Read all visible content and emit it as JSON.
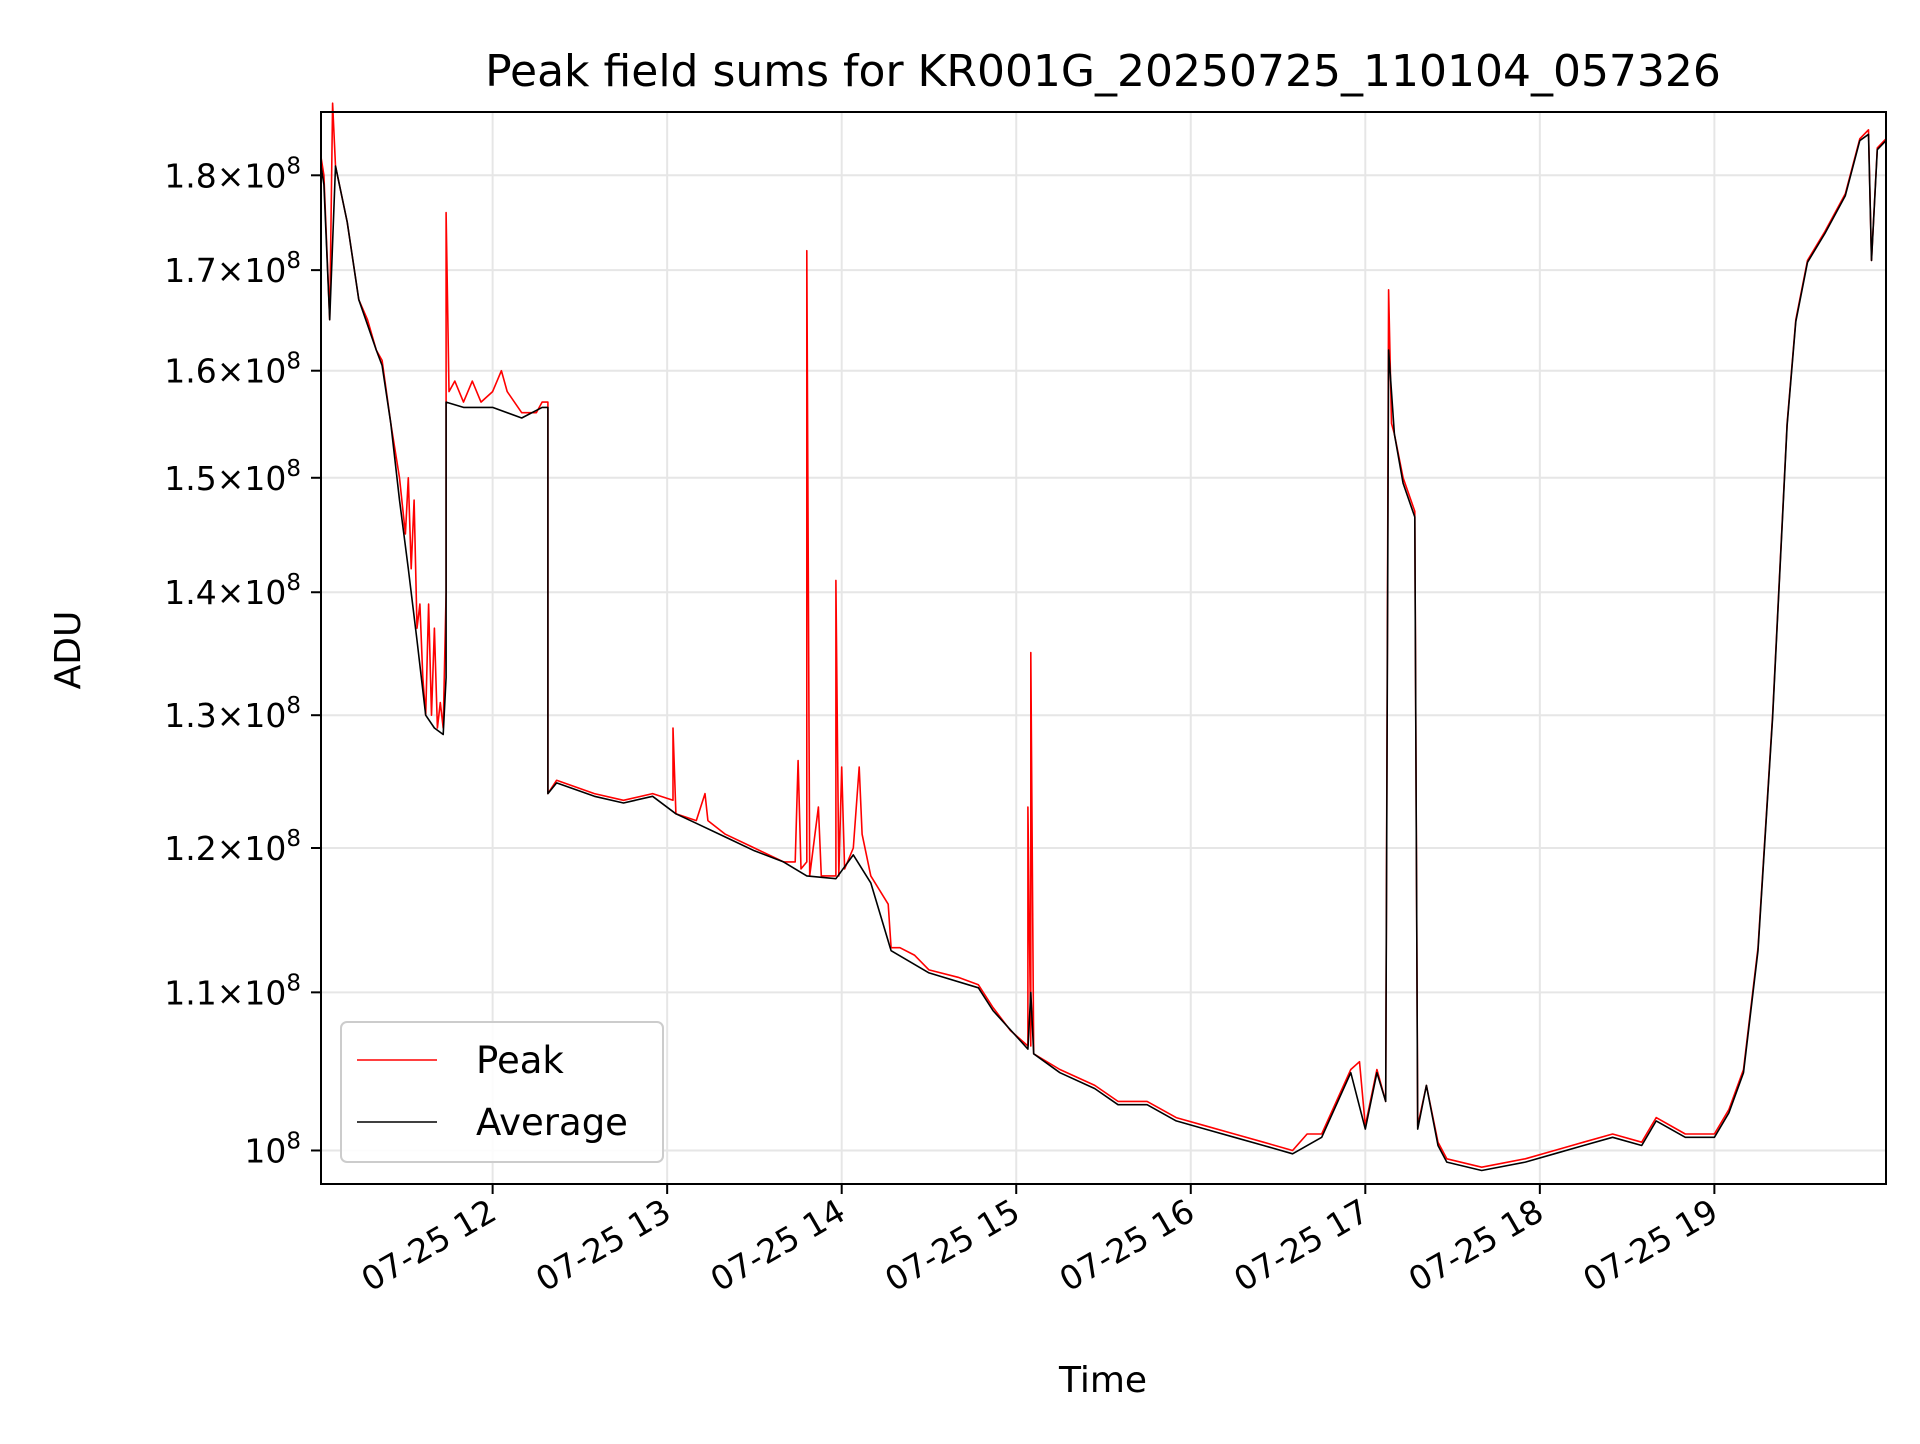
{
  "chart_data": {
    "type": "line",
    "title": "Peak field sums for KR001G_20250725_110104_057326",
    "xlabel": "Time",
    "ylabel": "ADU",
    "y_scale": "log",
    "grid": true,
    "legend_position": "lower-left",
    "xlim": [
      "2025-07-25 11:01",
      "2025-07-25 19:59"
    ],
    "ylim": [
      98000000,
      187000000
    ],
    "x_ticks": [
      {
        "value": "2025-07-25 12:00",
        "label": "07-25 12"
      },
      {
        "value": "2025-07-25 13:00",
        "label": "07-25 13"
      },
      {
        "value": "2025-07-25 14:00",
        "label": "07-25 14"
      },
      {
        "value": "2025-07-25 15:00",
        "label": "07-25 15"
      },
      {
        "value": "2025-07-25 16:00",
        "label": "07-25 16"
      },
      {
        "value": "2025-07-25 17:00",
        "label": "07-25 17"
      },
      {
        "value": "2025-07-25 18:00",
        "label": "07-25 18"
      },
      {
        "value": "2025-07-25 19:00",
        "label": "07-25 19"
      }
    ],
    "y_ticks": [
      {
        "value": 100000000,
        "mant": "",
        "base": "10",
        "exp": "8"
      },
      {
        "value": 110000000,
        "mant": "1.1",
        "base": "10",
        "exp": "8"
      },
      {
        "value": 120000000,
        "mant": "1.2",
        "base": "10",
        "exp": "8"
      },
      {
        "value": 130000000,
        "mant": "1.3",
        "base": "10",
        "exp": "8"
      },
      {
        "value": 140000000,
        "mant": "1.4",
        "base": "10",
        "exp": "8"
      },
      {
        "value": 150000000,
        "mant": "1.5",
        "base": "10",
        "exp": "8"
      },
      {
        "value": 160000000,
        "mant": "1.6",
        "base": "10",
        "exp": "8"
      },
      {
        "value": 170000000,
        "mant": "1.7",
        "base": "10",
        "exp": "8"
      },
      {
        "value": 180000000,
        "mant": "1.8",
        "base": "10",
        "exp": "8"
      }
    ],
    "series": [
      {
        "name": "Peak",
        "color": "#ff0000",
        "points": [
          [
            "2025-07-25 11:01",
            182000000
          ],
          [
            "2025-07-25 11:02",
            180000000
          ],
          [
            "2025-07-25 11:04",
            165000000
          ],
          [
            "2025-07-25 11:05",
            188000000
          ],
          [
            "2025-07-25 11:06",
            181000000
          ],
          [
            "2025-07-25 11:10",
            175000000
          ],
          [
            "2025-07-25 11:14",
            167000000
          ],
          [
            "2025-07-25 11:17",
            165000000
          ],
          [
            "2025-07-25 11:20",
            162000000
          ],
          [
            "2025-07-25 11:22",
            161000000
          ],
          [
            "2025-07-25 11:25",
            155000000
          ],
          [
            "2025-07-25 11:28",
            150000000
          ],
          [
            "2025-07-25 11:30",
            145000000
          ],
          [
            "2025-07-25 11:31",
            150000000
          ],
          [
            "2025-07-25 11:32",
            142000000
          ],
          [
            "2025-07-25 11:33",
            148000000
          ],
          [
            "2025-07-25 11:34",
            137000000
          ],
          [
            "2025-07-25 11:35",
            139000000
          ],
          [
            "2025-07-25 11:36",
            133000000
          ],
          [
            "2025-07-25 11:37",
            130000000
          ],
          [
            "2025-07-25 11:38",
            139000000
          ],
          [
            "2025-07-25 11:39",
            130000000
          ],
          [
            "2025-07-25 11:40",
            137000000
          ],
          [
            "2025-07-25 11:41",
            129000000
          ],
          [
            "2025-07-25 11:42",
            131000000
          ],
          [
            "2025-07-25 11:43",
            129000000
          ],
          [
            "2025-07-25 11:44",
            140000000
          ],
          [
            "2025-07-25 11:44",
            176000000
          ],
          [
            "2025-07-25 11:45",
            158000000
          ],
          [
            "2025-07-25 11:47",
            159000000
          ],
          [
            "2025-07-25 11:50",
            157000000
          ],
          [
            "2025-07-25 11:53",
            159000000
          ],
          [
            "2025-07-25 11:56",
            157000000
          ],
          [
            "2025-07-25 12:00",
            158000000
          ],
          [
            "2025-07-25 12:03",
            160000000
          ],
          [
            "2025-07-25 12:05",
            158000000
          ],
          [
            "2025-07-25 12:10",
            156000000
          ],
          [
            "2025-07-25 12:15",
            156000000
          ],
          [
            "2025-07-25 12:17",
            157000000
          ],
          [
            "2025-07-25 12:19",
            157000000
          ],
          [
            "2025-07-25 12:19",
            124000000
          ],
          [
            "2025-07-25 12:22",
            125000000
          ],
          [
            "2025-07-25 12:35",
            124000000
          ],
          [
            "2025-07-25 12:45",
            123500000
          ],
          [
            "2025-07-25 12:55",
            124000000
          ],
          [
            "2025-07-25 13:02",
            123500000
          ],
          [
            "2025-07-25 13:02",
            129000000
          ],
          [
            "2025-07-25 13:03",
            122500000
          ],
          [
            "2025-07-25 13:10",
            122000000
          ],
          [
            "2025-07-25 13:13",
            124000000
          ],
          [
            "2025-07-25 13:14",
            122000000
          ],
          [
            "2025-07-25 13:20",
            121000000
          ],
          [
            "2025-07-25 13:30",
            120000000
          ],
          [
            "2025-07-25 13:40",
            119000000
          ],
          [
            "2025-07-25 13:44",
            119000000
          ],
          [
            "2025-07-25 13:45",
            126500000
          ],
          [
            "2025-07-25 13:46",
            118500000
          ],
          [
            "2025-07-25 13:48",
            119000000
          ],
          [
            "2025-07-25 13:48",
            172000000
          ],
          [
            "2025-07-25 13:49",
            118000000
          ],
          [
            "2025-07-25 13:52",
            123000000
          ],
          [
            "2025-07-25 13:53",
            118000000
          ],
          [
            "2025-07-25 13:58",
            118000000
          ],
          [
            "2025-07-25 13:58",
            141000000
          ],
          [
            "2025-07-25 13:59",
            118000000
          ],
          [
            "2025-07-25 14:00",
            126000000
          ],
          [
            "2025-07-25 14:01",
            118500000
          ],
          [
            "2025-07-25 14:04",
            120000000
          ],
          [
            "2025-07-25 14:06",
            126000000
          ],
          [
            "2025-07-25 14:07",
            121000000
          ],
          [
            "2025-07-25 14:10",
            118000000
          ],
          [
            "2025-07-25 14:16",
            116000000
          ],
          [
            "2025-07-25 14:17",
            113000000
          ],
          [
            "2025-07-25 14:20",
            113000000
          ],
          [
            "2025-07-25 14:25",
            112500000
          ],
          [
            "2025-07-25 14:30",
            111500000
          ],
          [
            "2025-07-25 14:40",
            111000000
          ],
          [
            "2025-07-25 14:47",
            110500000
          ],
          [
            "2025-07-25 14:52",
            109000000
          ],
          [
            "2025-07-25 14:58",
            107500000
          ],
          [
            "2025-07-25 15:04",
            106500000
          ],
          [
            "2025-07-25 15:04",
            123000000
          ],
          [
            "2025-07-25 15:05",
            106500000
          ],
          [
            "2025-07-25 15:05",
            135000000
          ],
          [
            "2025-07-25 15:06",
            106000000
          ],
          [
            "2025-07-25 15:15",
            105000000
          ],
          [
            "2025-07-25 15:27",
            104000000
          ],
          [
            "2025-07-25 15:35",
            103000000
          ],
          [
            "2025-07-25 15:45",
            103000000
          ],
          [
            "2025-07-25 15:55",
            102000000
          ],
          [
            "2025-07-25 16:05",
            101500000
          ],
          [
            "2025-07-25 16:15",
            101000000
          ],
          [
            "2025-07-25 16:25",
            100500000
          ],
          [
            "2025-07-25 16:35",
            100000000
          ],
          [
            "2025-07-25 16:40",
            101000000
          ],
          [
            "2025-07-25 16:45",
            101000000
          ],
          [
            "2025-07-25 16:55",
            105000000
          ],
          [
            "2025-07-25 16:58",
            105500000
          ],
          [
            "2025-07-25 17:00",
            101500000
          ],
          [
            "2025-07-25 17:04",
            105000000
          ],
          [
            "2025-07-25 17:07",
            103000000
          ],
          [
            "2025-07-25 17:08",
            168000000
          ],
          [
            "2025-07-25 17:09",
            155000000
          ],
          [
            "2025-07-25 17:10",
            154000000
          ],
          [
            "2025-07-25 17:13",
            150000000
          ],
          [
            "2025-07-25 17:17",
            147000000
          ],
          [
            "2025-07-25 17:18",
            101500000
          ],
          [
            "2025-07-25 17:21",
            104000000
          ],
          [
            "2025-07-25 17:25",
            100500000
          ],
          [
            "2025-07-25 17:28",
            99500000
          ],
          [
            "2025-07-25 17:40",
            99000000
          ],
          [
            "2025-07-25 17:55",
            99500000
          ],
          [
            "2025-07-25 18:05",
            100000000
          ],
          [
            "2025-07-25 18:15",
            100500000
          ],
          [
            "2025-07-25 18:25",
            101000000
          ],
          [
            "2025-07-25 18:35",
            100500000
          ],
          [
            "2025-07-25 18:40",
            102000000
          ],
          [
            "2025-07-25 18:50",
            101000000
          ],
          [
            "2025-07-25 19:00",
            101000000
          ],
          [
            "2025-07-25 19:05",
            102500000
          ],
          [
            "2025-07-25 19:10",
            105000000
          ],
          [
            "2025-07-25 19:15",
            113000000
          ],
          [
            "2025-07-25 19:20",
            130000000
          ],
          [
            "2025-07-25 19:25",
            155000000
          ],
          [
            "2025-07-25 19:28",
            165000000
          ],
          [
            "2025-07-25 19:32",
            171000000
          ],
          [
            "2025-07-25 19:38",
            174000000
          ],
          [
            "2025-07-25 19:45",
            178000000
          ],
          [
            "2025-07-25 19:50",
            184000000
          ],
          [
            "2025-07-25 19:53",
            185000000
          ],
          [
            "2025-07-25 19:54",
            171000000
          ],
          [
            "2025-07-25 19:56",
            183000000
          ],
          [
            "2025-07-25 19:59",
            184000000
          ]
        ]
      },
      {
        "name": "Average",
        "color": "#000000",
        "points": [
          [
            "2025-07-25 11:01",
            181000000
          ],
          [
            "2025-07-25 11:02",
            179000000
          ],
          [
            "2025-07-25 11:04",
            165000000
          ],
          [
            "2025-07-25 11:06",
            181000000
          ],
          [
            "2025-07-25 11:10",
            175000000
          ],
          [
            "2025-07-25 11:14",
            167000000
          ],
          [
            "2025-07-25 11:17",
            164500000
          ],
          [
            "2025-07-25 11:20",
            162000000
          ],
          [
            "2025-07-25 11:22",
            160500000
          ],
          [
            "2025-07-25 11:25",
            155000000
          ],
          [
            "2025-07-25 11:28",
            148000000
          ],
          [
            "2025-07-25 11:31",
            142000000
          ],
          [
            "2025-07-25 11:34",
            136000000
          ],
          [
            "2025-07-25 11:37",
            130000000
          ],
          [
            "2025-07-25 11:40",
            129000000
          ],
          [
            "2025-07-25 11:43",
            128500000
          ],
          [
            "2025-07-25 11:44",
            133000000
          ],
          [
            "2025-07-25 11:44",
            157000000
          ],
          [
            "2025-07-25 11:50",
            156500000
          ],
          [
            "2025-07-25 12:00",
            156500000
          ],
          [
            "2025-07-25 12:10",
            155500000
          ],
          [
            "2025-07-25 12:17",
            156500000
          ],
          [
            "2025-07-25 12:19",
            156500000
          ],
          [
            "2025-07-25 12:19",
            124000000
          ],
          [
            "2025-07-25 12:22",
            124800000
          ],
          [
            "2025-07-25 12:35",
            123800000
          ],
          [
            "2025-07-25 12:45",
            123300000
          ],
          [
            "2025-07-25 12:55",
            123800000
          ],
          [
            "2025-07-25 13:03",
            122500000
          ],
          [
            "2025-07-25 13:10",
            121800000
          ],
          [
            "2025-07-25 13:20",
            120800000
          ],
          [
            "2025-07-25 13:30",
            119800000
          ],
          [
            "2025-07-25 13:40",
            119000000
          ],
          [
            "2025-07-25 13:48",
            118000000
          ],
          [
            "2025-07-25 13:58",
            117800000
          ],
          [
            "2025-07-25 14:04",
            119500000
          ],
          [
            "2025-07-25 14:10",
            117500000
          ],
          [
            "2025-07-25 14:17",
            112800000
          ],
          [
            "2025-07-25 14:30",
            111300000
          ],
          [
            "2025-07-25 14:47",
            110300000
          ],
          [
            "2025-07-25 14:52",
            108800000
          ],
          [
            "2025-07-25 15:04",
            106300000
          ],
          [
            "2025-07-25 15:05",
            110000000
          ],
          [
            "2025-07-25 15:06",
            106000000
          ],
          [
            "2025-07-25 15:15",
            104800000
          ],
          [
            "2025-07-25 15:27",
            103800000
          ],
          [
            "2025-07-25 15:35",
            102800000
          ],
          [
            "2025-07-25 15:45",
            102800000
          ],
          [
            "2025-07-25 15:55",
            101800000
          ],
          [
            "2025-07-25 16:05",
            101300000
          ],
          [
            "2025-07-25 16:15",
            100800000
          ],
          [
            "2025-07-25 16:25",
            100300000
          ],
          [
            "2025-07-25 16:35",
            99800000
          ],
          [
            "2025-07-25 16:45",
            100800000
          ],
          [
            "2025-07-25 16:55",
            104800000
          ],
          [
            "2025-07-25 17:00",
            101300000
          ],
          [
            "2025-07-25 17:04",
            104800000
          ],
          [
            "2025-07-25 17:07",
            103000000
          ],
          [
            "2025-07-25 17:08",
            162000000
          ],
          [
            "2025-07-25 17:10",
            154000000
          ],
          [
            "2025-07-25 17:13",
            149500000
          ],
          [
            "2025-07-25 17:17",
            146500000
          ],
          [
            "2025-07-25 17:18",
            101300000
          ],
          [
            "2025-07-25 17:21",
            104000000
          ],
          [
            "2025-07-25 17:25",
            100300000
          ],
          [
            "2025-07-25 17:28",
            99300000
          ],
          [
            "2025-07-25 17:40",
            98800000
          ],
          [
            "2025-07-25 17:55",
            99300000
          ],
          [
            "2025-07-25 18:05",
            99800000
          ],
          [
            "2025-07-25 18:15",
            100300000
          ],
          [
            "2025-07-25 18:25",
            100800000
          ],
          [
            "2025-07-25 18:35",
            100300000
          ],
          [
            "2025-07-25 18:40",
            101800000
          ],
          [
            "2025-07-25 18:50",
            100800000
          ],
          [
            "2025-07-25 19:00",
            100800000
          ],
          [
            "2025-07-25 19:05",
            102300000
          ],
          [
            "2025-07-25 19:10",
            104800000
          ],
          [
            "2025-07-25 19:15",
            112800000
          ],
          [
            "2025-07-25 19:20",
            129800000
          ],
          [
            "2025-07-25 19:25",
            154800000
          ],
          [
            "2025-07-25 19:28",
            164800000
          ],
          [
            "2025-07-25 19:32",
            170800000
          ],
          [
            "2025-07-25 19:38",
            173800000
          ],
          [
            "2025-07-25 19:45",
            177800000
          ],
          [
            "2025-07-25 19:50",
            183800000
          ],
          [
            "2025-07-25 19:53",
            184500000
          ],
          [
            "2025-07-25 19:54",
            171000000
          ],
          [
            "2025-07-25 19:56",
            182800000
          ],
          [
            "2025-07-25 19:59",
            183800000
          ]
        ]
      }
    ]
  }
}
